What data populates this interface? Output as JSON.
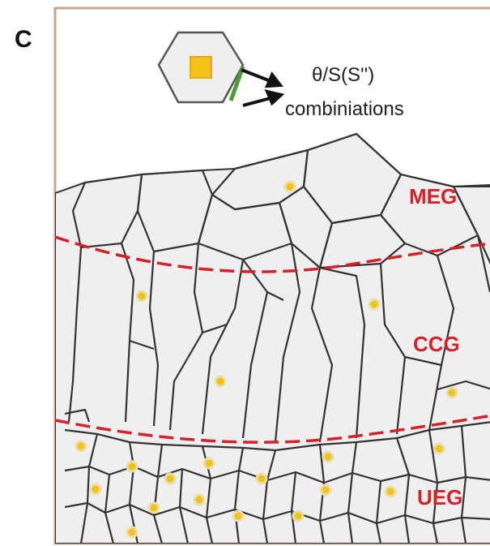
{
  "panel_label": "C",
  "legend": {
    "line1": "θ/S(S'')",
    "line2": "combiniations"
  },
  "zones": {
    "meg": "MEG",
    "ccg": "CCG",
    "ueg": "UEG"
  },
  "colors": {
    "frame": "#c9a48f",
    "cell_fill": "#efefef",
    "cell_edge": "#3a3a3a",
    "nucleus": "#f2c11a",
    "zone_line": "#d6202a",
    "zone_label": "#d6202a",
    "legend_edge": "#4c9a3a"
  }
}
